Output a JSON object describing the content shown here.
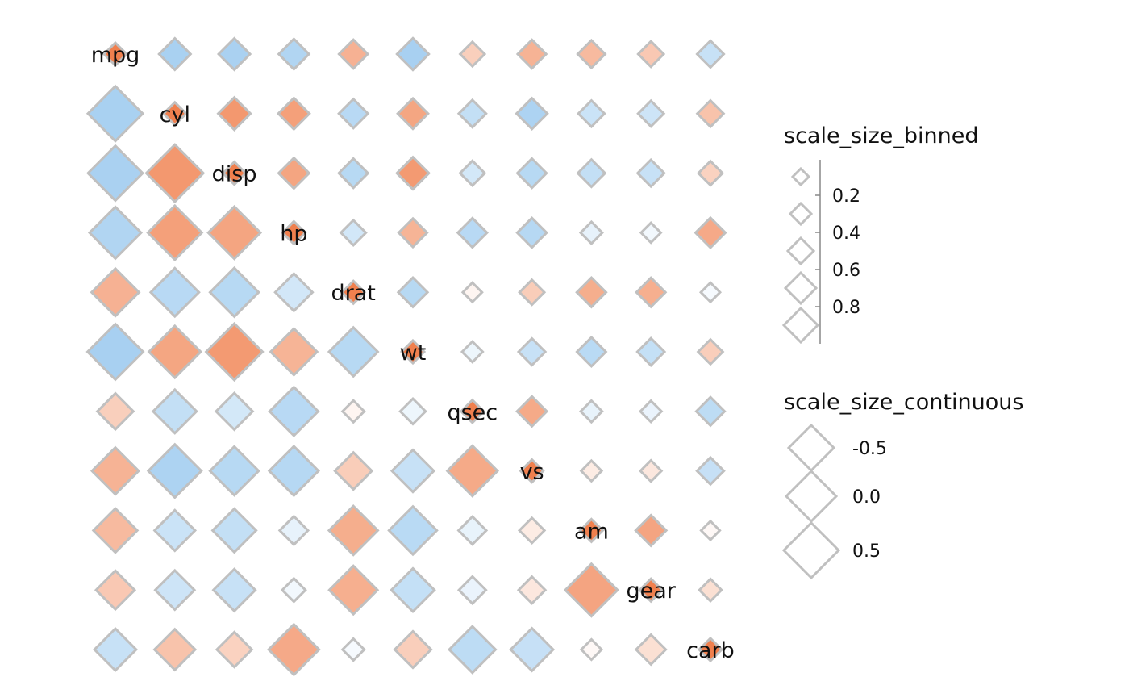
{
  "chart_data": {
    "type": "heatmap",
    "variables": [
      "mpg",
      "cyl",
      "disp",
      "hp",
      "drat",
      "wt",
      "qsec",
      "vs",
      "am",
      "gear",
      "carb"
    ],
    "correlation_matrix": [
      [
        1.0,
        -0.852,
        -0.848,
        -0.776,
        0.681,
        -0.868,
        0.419,
        0.664,
        0.6,
        0.48,
        -0.551
      ],
      [
        -0.852,
        1.0,
        0.902,
        0.832,
        -0.7,
        0.782,
        -0.591,
        -0.811,
        -0.523,
        -0.493,
        0.527
      ],
      [
        -0.848,
        0.902,
        1.0,
        0.791,
        -0.71,
        0.888,
        -0.434,
        -0.71,
        -0.591,
        -0.556,
        0.395
      ],
      [
        -0.776,
        0.832,
        0.791,
        1.0,
        -0.449,
        0.659,
        -0.708,
        -0.723,
        -0.243,
        -0.126,
        0.75
      ],
      [
        0.681,
        -0.7,
        -0.71,
        -0.449,
        1.0,
        -0.712,
        0.091,
        0.44,
        0.713,
        0.7,
        -0.091
      ],
      [
        -0.868,
        0.782,
        0.888,
        0.659,
        -0.712,
        1.0,
        -0.175,
        -0.555,
        -0.692,
        -0.583,
        0.428
      ],
      [
        0.419,
        -0.591,
        -0.434,
        -0.708,
        0.091,
        -0.175,
        1.0,
        0.745,
        -0.23,
        -0.213,
        -0.656
      ],
      [
        0.664,
        -0.811,
        -0.71,
        -0.723,
        0.44,
        -0.555,
        0.745,
        1.0,
        0.168,
        0.206,
        -0.57
      ],
      [
        0.6,
        -0.523,
        -0.591,
        -0.243,
        0.713,
        -0.692,
        -0.23,
        0.168,
        1.0,
        0.794,
        0.058
      ],
      [
        0.48,
        -0.493,
        -0.556,
        -0.126,
        0.7,
        -0.583,
        -0.213,
        0.206,
        0.794,
        1.0,
        0.274
      ],
      [
        -0.551,
        0.527,
        0.395,
        0.75,
        -0.091,
        0.428,
        -0.656,
        -0.57,
        0.058,
        0.274,
        1.0
      ]
    ],
    "diagonal_value": 1,
    "upper_triangle_fill_strength": 0.4,
    "color_scale": {
      "negative": "#8fc3ed",
      "zero": "#ffffff",
      "positive": "#f0804e",
      "border": "#c0c0c0"
    },
    "legends": [
      {
        "title": "scale_size_binned",
        "labels": [
          "0.2",
          "0.4",
          "0.6",
          "0.8"
        ],
        "breaks": [
          0.2,
          0.4,
          0.6,
          0.8
        ]
      },
      {
        "title": "scale_size_continuous",
        "labels": [
          "-0.5",
          "0.0",
          "0.5"
        ],
        "breaks": [
          -0.5,
          0.0,
          0.5
        ]
      }
    ]
  }
}
